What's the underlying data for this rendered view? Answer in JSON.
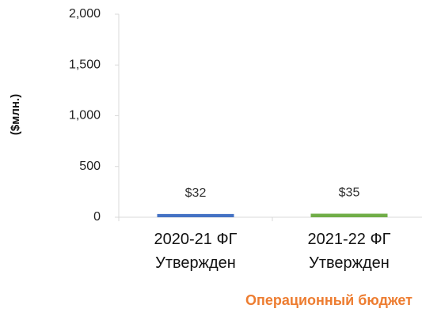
{
  "chart_data": {
    "type": "bar",
    "title": "Операционный бюджет",
    "y_label": "($млн.)",
    "categories": [
      "2020-21 ФГ\nУтвержден",
      "2021-22 ФГ\nУтвержден"
    ],
    "values": [
      32,
      35
    ],
    "value_labels": [
      "$32",
      "$35"
    ],
    "colors": [
      "#4472c4",
      "#70ad47"
    ],
    "ylim": [
      0,
      2000
    ],
    "yticks": [
      {
        "value": 0,
        "label": "0"
      },
      {
        "value": 500,
        "label": "500"
      },
      {
        "value": 1000,
        "label": "1,000"
      },
      {
        "value": 1500,
        "label": "1,500"
      },
      {
        "value": 2000,
        "label": "2,000"
      }
    ],
    "grid": false
  }
}
